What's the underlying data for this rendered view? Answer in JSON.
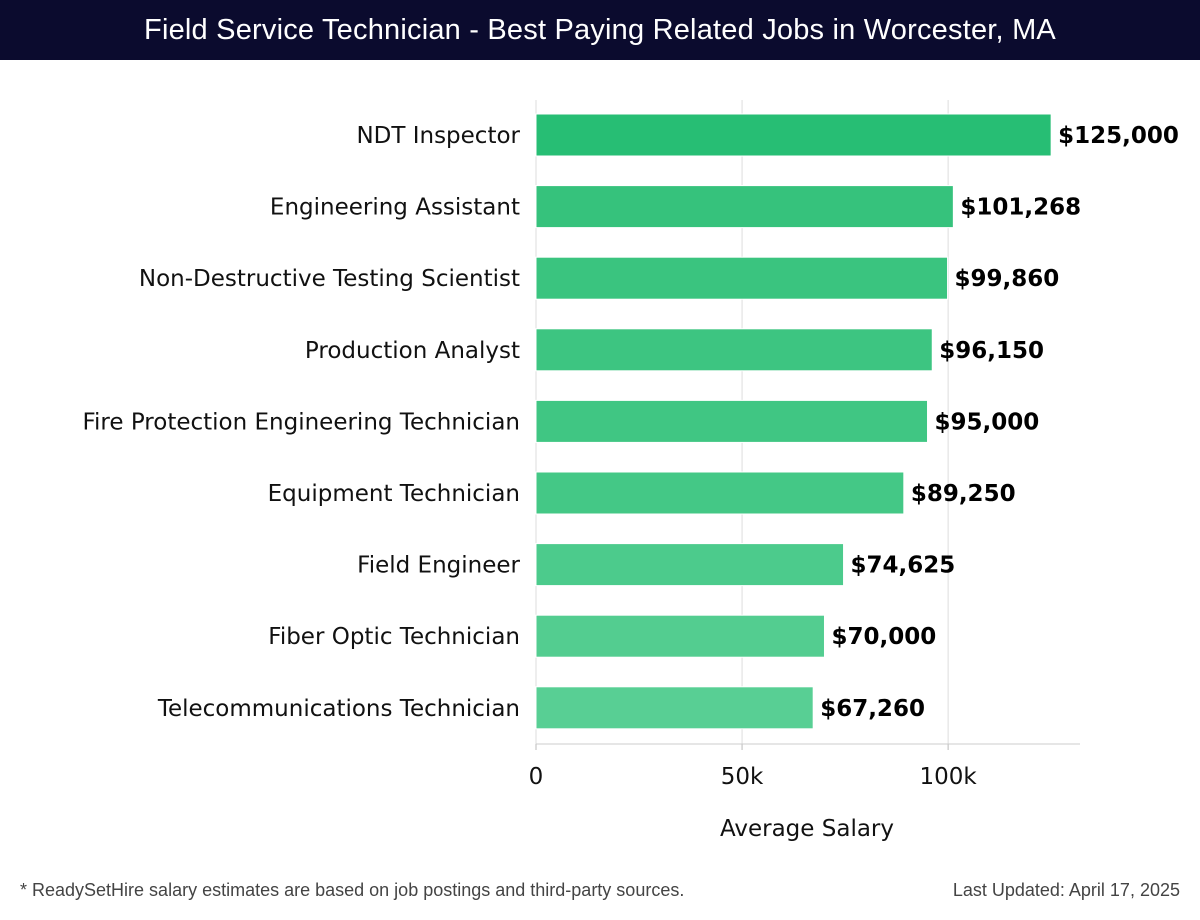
{
  "header": {
    "title": "Field Service Technician - Best Paying Related Jobs in Worcester, MA"
  },
  "chart_data": {
    "type": "bar",
    "orientation": "horizontal",
    "categories": [
      "NDT Inspector",
      "Engineering Assistant",
      "Non-Destructive Testing Scientist",
      "Production Analyst",
      "Fire Protection Engineering Technician",
      "Equipment Technician",
      "Field Engineer",
      "Fiber Optic Technician",
      "Telecommunications Technician"
    ],
    "values": [
      125000,
      101268,
      99860,
      96150,
      95000,
      89250,
      74625,
      70000,
      67260
    ],
    "value_labels": [
      "$125,000",
      "$101,268",
      "$99,860",
      "$96,150",
      "$95,000",
      "$89,250",
      "$74,625",
      "$70,000",
      "$67,260"
    ],
    "xlabel": "Average Salary",
    "ylabel": "",
    "xlim": [
      0,
      132000
    ],
    "xticks": [
      0,
      50000,
      100000
    ],
    "xtick_labels": [
      "0",
      "50k",
      "100k"
    ],
    "grid": true,
    "bar_colors": [
      "#27be74",
      "#36c27c",
      "#3ac47f",
      "#3dc581",
      "#40c683",
      "#44c886",
      "#4ccb8c",
      "#53cd90",
      "#58cf94"
    ]
  },
  "footer": {
    "note": "* ReadySetHire salary estimates are based on job postings and third-party sources.",
    "updated": "Last Updated: April 17, 2025"
  }
}
